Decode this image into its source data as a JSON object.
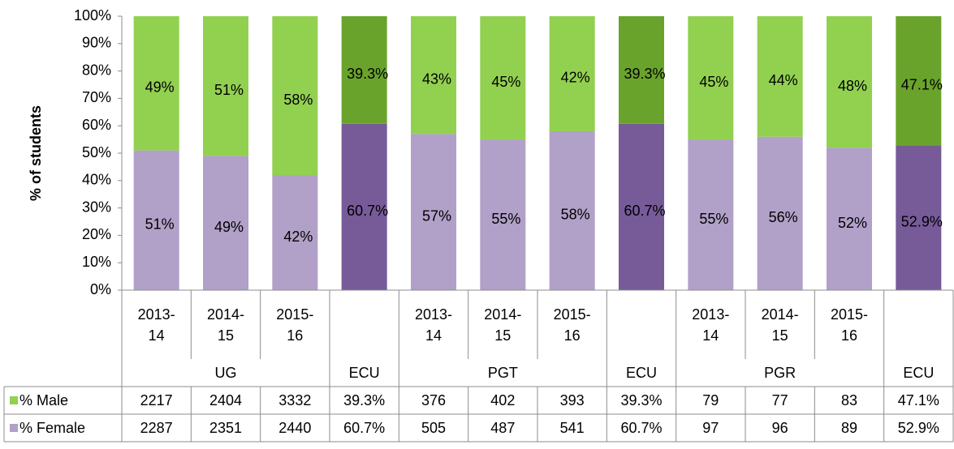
{
  "chart_data": {
    "type": "bar",
    "stacked": true,
    "ylabel": "% of students",
    "categories": [
      "2013-14",
      "2014-15",
      "2015-16",
      null,
      "2013-14",
      "2014-15",
      "2015-16",
      null,
      "2013-14",
      "2014-15",
      "2015-16",
      null
    ],
    "group_labels": [
      "UG",
      "ECU",
      "PGT",
      "ECU",
      "PGR",
      "ECU"
    ],
    "series": [
      {
        "name": "% Female",
        "color": "#b1a0c7",
        "colors": [
          "#b1a0c7",
          "#b1a0c7",
          "#b1a0c7",
          "#775b99",
          "#b1a0c7",
          "#b1a0c7",
          "#b1a0c7",
          "#775b99",
          "#b1a0c7",
          "#b1a0c7",
          "#b1a0c7",
          "#775b99"
        ],
        "values": [
          51,
          49,
          42,
          60.7,
          57,
          55,
          58,
          60.7,
          55,
          56,
          52,
          52.9
        ],
        "value_labels": [
          "51%",
          "49%",
          "42%",
          "60.7%",
          "57%",
          "55%",
          "58%",
          "60.7%",
          "55%",
          "56%",
          "52%",
          "52.9%"
        ],
        "table_values": [
          2287,
          2351,
          2440,
          "60.7%",
          505,
          487,
          541,
          "60.7%",
          97,
          96,
          89,
          "52.9%"
        ]
      },
      {
        "name": "% Male",
        "color": "#92d050",
        "colors": [
          "#92d050",
          "#92d050",
          "#92d050",
          "#6aa32c",
          "#92d050",
          "#92d050",
          "#92d050",
          "#6aa32c",
          "#92d050",
          "#92d050",
          "#92d050",
          "#6aa32c"
        ],
        "values": [
          49,
          51,
          58,
          39.3,
          43,
          45,
          42,
          39.3,
          45,
          44,
          48,
          47.1
        ],
        "value_labels": [
          "49%",
          "51%",
          "58%",
          "39.3%",
          "43%",
          "45%",
          "42%",
          "39.3%",
          "45%",
          "44%",
          "48%",
          "47.1%"
        ],
        "table_values": [
          2217,
          2404,
          3332,
          "39.3%",
          376,
          402,
          393,
          "39.3%",
          79,
          77,
          83,
          "47.1%"
        ]
      }
    ],
    "ylim": [
      0,
      100
    ],
    "yticks": [
      {
        "value": 0,
        "label": "0%"
      },
      {
        "value": 10,
        "label": "10%"
      },
      {
        "value": 20,
        "label": "20%"
      },
      {
        "value": 30,
        "label": "30%"
      },
      {
        "value": 40,
        "label": "40%"
      },
      {
        "value": 50,
        "label": "50%"
      },
      {
        "value": 60,
        "label": "60%"
      },
      {
        "value": 70,
        "label": "70%"
      },
      {
        "value": 80,
        "label": "80%"
      },
      {
        "value": 90,
        "label": "90%"
      },
      {
        "value": 100,
        "label": "100%"
      }
    ],
    "grid": false
  }
}
